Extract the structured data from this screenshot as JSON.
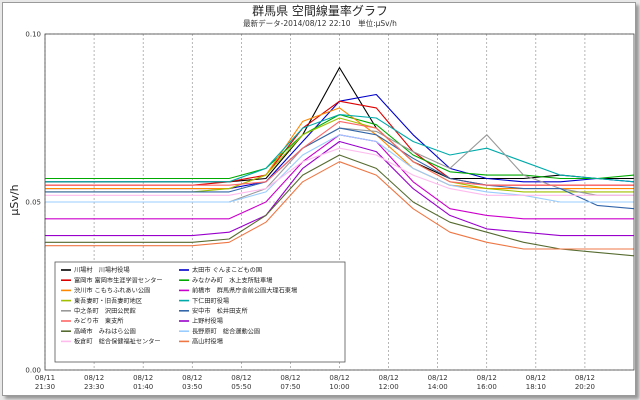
{
  "chart_data": {
    "type": "line",
    "title": "群馬県 空間線量率グラフ",
    "subtitle": "最新データ-2014/08/12 22:10　単位:μSv/h",
    "xlabel": "",
    "ylabel": "μSv/h",
    "ylim": [
      0.0,
      0.1
    ],
    "yticks": [
      "0.00",
      "0.05",
      "0.10"
    ],
    "grid": true,
    "legend_position": "bottom-left",
    "xticks": [
      {
        "date": "08/11",
        "time": "21:30"
      },
      {
        "date": "08/12",
        "time": "23:30"
      },
      {
        "date": "08/12",
        "time": "01:40"
      },
      {
        "date": "08/12",
        "time": "03:50"
      },
      {
        "date": "08/12",
        "time": "05:50"
      },
      {
        "date": "08/12",
        "time": "07:50"
      },
      {
        "date": "08/12",
        "time": "10:00"
      },
      {
        "date": "08/12",
        "time": "12:00"
      },
      {
        "date": "08/12",
        "time": "14:00"
      },
      {
        "date": "08/12",
        "time": "16:00"
      },
      {
        "date": "08/12",
        "time": "18:10"
      },
      {
        "date": "08/12",
        "time": "20:20"
      }
    ],
    "series": [
      {
        "name": "川場村　川場村役場",
        "color": "#000000",
        "values": [
          0.056,
          0.056,
          0.056,
          0.056,
          0.056,
          0.056,
          0.057,
          0.07,
          0.09,
          0.072,
          0.062,
          0.057,
          0.057,
          0.057,
          0.058,
          0.057,
          0.057
        ]
      },
      {
        "name": "太田市 ぐんまこどもの国",
        "color": "#0000cc",
        "values": [
          0.054,
          0.054,
          0.054,
          0.054,
          0.054,
          0.054,
          0.056,
          0.068,
          0.08,
          0.082,
          0.07,
          0.06,
          0.057,
          0.056,
          0.056,
          0.057,
          0.056
        ]
      },
      {
        "name": "富岡市 富岡市生涯学習センター",
        "color": "#dd0000",
        "values": [
          0.055,
          0.055,
          0.055,
          0.055,
          0.055,
          0.056,
          0.058,
          0.072,
          0.08,
          0.078,
          0.065,
          0.057,
          0.055,
          0.055,
          0.055,
          0.055,
          0.055
        ]
      },
      {
        "name": "みなかみ町　水上支所駐車場",
        "color": "#00aa00",
        "values": [
          0.057,
          0.057,
          0.057,
          0.057,
          0.057,
          0.057,
          0.06,
          0.07,
          0.076,
          0.073,
          0.064,
          0.059,
          0.058,
          0.058,
          0.057,
          0.057,
          0.058
        ]
      },
      {
        "name": "渋川市 こもちふれあい公園",
        "color": "#ff8800",
        "values": [
          0.054,
          0.054,
          0.054,
          0.054,
          0.054,
          0.054,
          0.058,
          0.074,
          0.078,
          0.07,
          0.06,
          0.055,
          0.054,
          0.054,
          0.054,
          0.054,
          0.054
        ]
      },
      {
        "name": "前橋市　群馬県庁舎前公園大理石東場",
        "color": "#cc00cc",
        "values": [
          0.045,
          0.045,
          0.045,
          0.045,
          0.045,
          0.045,
          0.05,
          0.062,
          0.07,
          0.068,
          0.056,
          0.048,
          0.046,
          0.045,
          0.045,
          0.045,
          0.045
        ]
      },
      {
        "name": "東吾妻町・旧吾妻町地区",
        "color": "#a0c000",
        "values": [
          0.053,
          0.053,
          0.053,
          0.053,
          0.053,
          0.054,
          0.058,
          0.07,
          0.075,
          0.072,
          0.062,
          0.056,
          0.054,
          0.053,
          0.053,
          0.053,
          0.053
        ]
      },
      {
        "name": "下仁田町役場",
        "color": "#00aaaa",
        "values": [
          0.056,
          0.056,
          0.056,
          0.056,
          0.056,
          0.056,
          0.06,
          0.072,
          0.076,
          0.075,
          0.068,
          0.064,
          0.066,
          0.062,
          0.058,
          0.057,
          0.056
        ]
      },
      {
        "name": "中之条町　沢田公民館",
        "color": "#999999",
        "values": [
          0.05,
          0.05,
          0.05,
          0.05,
          0.05,
          0.05,
          0.054,
          0.066,
          0.072,
          0.071,
          0.065,
          0.06,
          0.07,
          0.058,
          0.054,
          0.052,
          0.052
        ]
      },
      {
        "name": "安中市　松井田支所",
        "color": "#3366aa",
        "values": [
          0.053,
          0.053,
          0.053,
          0.053,
          0.053,
          0.053,
          0.056,
          0.066,
          0.072,
          0.07,
          0.063,
          0.057,
          0.055,
          0.054,
          0.054,
          0.049,
          0.048
        ]
      },
      {
        "name": "みどり市　東支所",
        "color": "#ff6666",
        "values": [
          0.055,
          0.055,
          0.055,
          0.055,
          0.055,
          0.055,
          0.056,
          0.066,
          0.074,
          0.072,
          0.062,
          0.056,
          0.055,
          0.055,
          0.055,
          0.055,
          0.055
        ]
      },
      {
        "name": "上野村役場",
        "color": "#9900cc",
        "values": [
          0.04,
          0.04,
          0.04,
          0.04,
          0.04,
          0.041,
          0.046,
          0.06,
          0.068,
          0.065,
          0.054,
          0.046,
          0.042,
          0.041,
          0.04,
          0.04,
          0.04
        ]
      },
      {
        "name": "高崎市　みねはら公園",
        "color": "#556b2f",
        "values": [
          0.038,
          0.038,
          0.038,
          0.038,
          0.038,
          0.039,
          0.046,
          0.058,
          0.064,
          0.06,
          0.05,
          0.044,
          0.041,
          0.038,
          0.036,
          0.035,
          0.034
        ]
      },
      {
        "name": "長野原町　総合運動公園",
        "color": "#99ccff",
        "values": [
          0.05,
          0.05,
          0.05,
          0.05,
          0.05,
          0.05,
          0.053,
          0.064,
          0.07,
          0.068,
          0.06,
          0.055,
          0.053,
          0.052,
          0.05,
          0.05,
          0.05
        ]
      },
      {
        "name": "板倉町　総合保健福祉センター",
        "color": "#ffbbee",
        "values": [
          0.052,
          0.052,
          0.052,
          0.052,
          0.052,
          0.052,
          0.054,
          0.062,
          0.066,
          0.064,
          0.058,
          0.054,
          0.052,
          0.052,
          0.052,
          0.052,
          0.052
        ]
      },
      {
        "name": "高山村役場",
        "color": "#ee7744",
        "values": [
          0.037,
          0.037,
          0.037,
          0.037,
          0.037,
          0.038,
          0.044,
          0.056,
          0.062,
          0.058,
          0.048,
          0.041,
          0.038,
          0.036,
          0.036,
          0.036,
          0.036
        ]
      }
    ]
  }
}
